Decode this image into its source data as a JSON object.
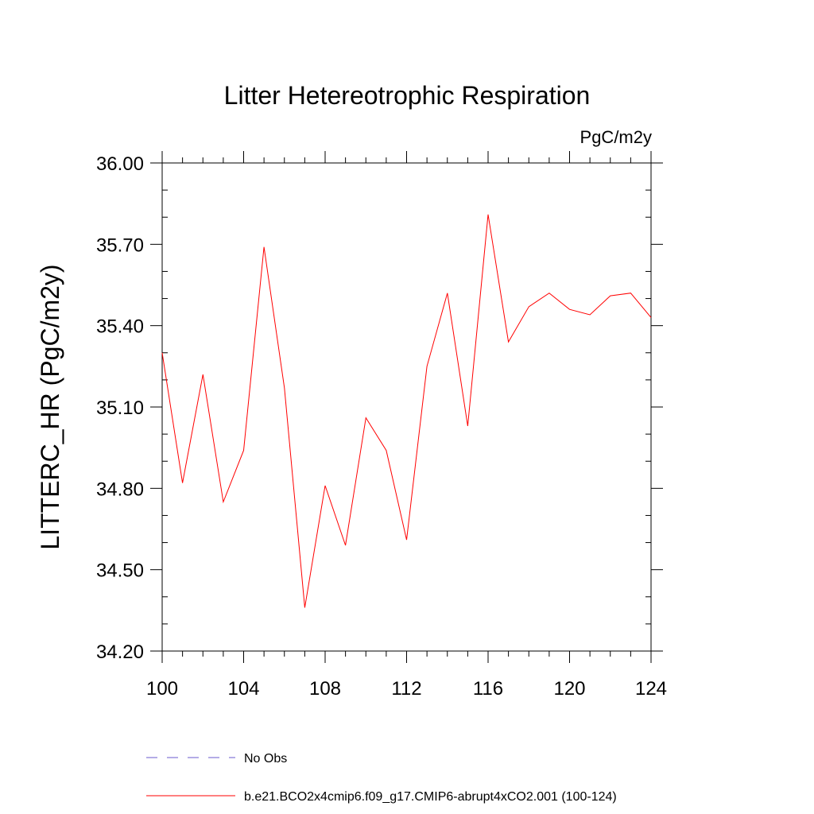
{
  "chart_data": {
    "type": "line",
    "title": "Litter Hetereotrophic Respiration",
    "units": "PgC/m2y",
    "xlabel": "",
    "ylabel": "LITTERC_HR  (PgC/m2y)",
    "xlim": [
      100,
      124
    ],
    "ylim": [
      34.2,
      36.0
    ],
    "x_ticks": [
      100,
      104,
      108,
      112,
      116,
      120,
      124
    ],
    "x_tick_labels": [
      "100",
      "104",
      "108",
      "112",
      "116",
      "120",
      "124"
    ],
    "y_ticks": [
      34.2,
      34.5,
      34.8,
      35.1,
      35.4,
      35.7,
      36.0
    ],
    "y_tick_labels": [
      "34.20",
      "34.50",
      "34.80",
      "35.10",
      "35.40",
      "35.70",
      "36.00"
    ],
    "grid": false,
    "legend_position": "bottom",
    "series": [
      {
        "name": "b.e21.BCO2x4cmip6.f09_g17.CMIP6-abrupt4xCO2.001 (100-124)",
        "color": "#ff0000",
        "dash": "solid",
        "x": [
          100,
          101,
          102,
          103,
          104,
          105,
          106,
          107,
          108,
          109,
          110,
          111,
          112,
          113,
          114,
          115,
          116,
          117,
          118,
          119,
          120,
          121,
          122,
          123,
          124
        ],
        "y": [
          35.3,
          34.82,
          35.22,
          34.75,
          34.94,
          35.69,
          35.17,
          34.36,
          34.81,
          34.59,
          35.06,
          34.94,
          34.61,
          35.25,
          35.52,
          35.03,
          35.81,
          35.34,
          35.47,
          35.52,
          35.46,
          35.44,
          35.51,
          35.52,
          35.43
        ]
      }
    ],
    "legend": [
      {
        "label": "No Obs",
        "color": "#6a5acd",
        "dash": "dashed"
      },
      {
        "label": "b.e21.BCO2x4cmip6.f09_g17.CMIP6-abrupt4xCO2.001 (100-124)",
        "color": "#ff0000",
        "dash": "solid"
      }
    ]
  }
}
